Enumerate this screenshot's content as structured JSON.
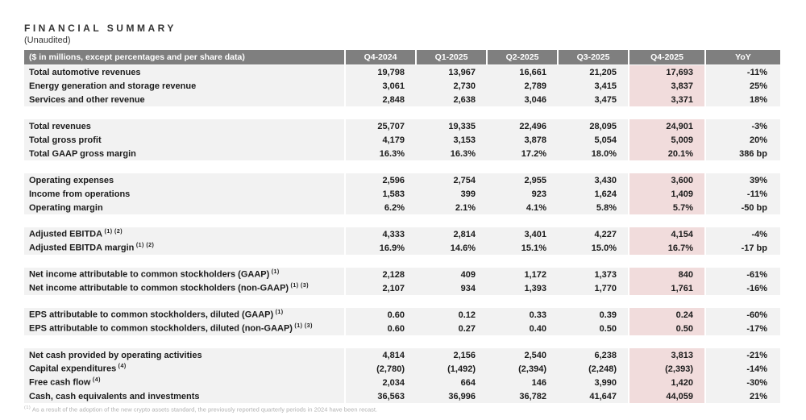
{
  "title": "FINANCIAL SUMMARY",
  "subtitle": "(Unaudited)",
  "colors": {
    "header_bg": "#7f7f7f",
    "header_text": "#ffffff",
    "row_bg": "#f2f2f2",
    "highlight_bg": "#f1dcdc"
  },
  "table": {
    "header": [
      "($ in millions, except percentages and per share data)",
      "Q4-2024",
      "Q1-2025",
      "Q2-2025",
      "Q3-2025",
      "Q4-2025",
      "YoY"
    ],
    "highlight_column": "Q4-2025",
    "sections": [
      {
        "rows": [
          {
            "label": "Total automotive revenues",
            "sup": "",
            "values": [
              "19,798",
              "13,967",
              "16,661",
              "21,205",
              "17,693",
              "-11%"
            ]
          },
          {
            "label": "Energy generation and storage revenue",
            "sup": "",
            "values": [
              "3,061",
              "2,730",
              "2,789",
              "3,415",
              "3,837",
              "25%"
            ]
          },
          {
            "label": "Services and other revenue",
            "sup": "",
            "values": [
              "2,848",
              "2,638",
              "3,046",
              "3,475",
              "3,371",
              "18%"
            ]
          }
        ]
      },
      {
        "rows": [
          {
            "label": "Total revenues",
            "sup": "",
            "values": [
              "25,707",
              "19,335",
              "22,496",
              "28,095",
              "24,901",
              "-3%"
            ]
          },
          {
            "label": "Total gross profit",
            "sup": "",
            "values": [
              "4,179",
              "3,153",
              "3,878",
              "5,054",
              "5,009",
              "20%"
            ]
          },
          {
            "label": "Total GAAP gross margin",
            "sup": "",
            "values": [
              "16.3%",
              "16.3%",
              "17.2%",
              "18.0%",
              "20.1%",
              "386 bp"
            ]
          }
        ]
      },
      {
        "rows": [
          {
            "label": "Operating expenses",
            "sup": "",
            "values": [
              "2,596",
              "2,754",
              "2,955",
              "3,430",
              "3,600",
              "39%"
            ]
          },
          {
            "label": "Income from operations",
            "sup": "",
            "values": [
              "1,583",
              "399",
              "923",
              "1,624",
              "1,409",
              "-11%"
            ]
          },
          {
            "label": "Operating margin",
            "sup": "",
            "values": [
              "6.2%",
              "2.1%",
              "4.1%",
              "5.8%",
              "5.7%",
              "-50 bp"
            ]
          }
        ]
      },
      {
        "rows": [
          {
            "label": "Adjusted EBITDA",
            "sup": "(1) (2)",
            "values": [
              "4,333",
              "2,814",
              "3,401",
              "4,227",
              "4,154",
              "-4%"
            ]
          },
          {
            "label": "Adjusted EBITDA margin",
            "sup": "(1) (2)",
            "values": [
              "16.9%",
              "14.6%",
              "15.1%",
              "15.0%",
              "16.7%",
              "-17 bp"
            ]
          }
        ]
      },
      {
        "rows": [
          {
            "label": "Net income attributable to common stockholders (GAAP)",
            "sup": "(1)",
            "values": [
              "2,128",
              "409",
              "1,172",
              "1,373",
              "840",
              "-61%"
            ]
          },
          {
            "label": "Net income attributable to common stockholders (non-GAAP)",
            "sup": "(1) (3)",
            "values": [
              "2,107",
              "934",
              "1,393",
              "1,770",
              "1,761",
              "-16%"
            ]
          }
        ]
      },
      {
        "rows": [
          {
            "label": "EPS attributable to common stockholders, diluted (GAAP)",
            "sup": "(1)",
            "values": [
              "0.60",
              "0.12",
              "0.33",
              "0.39",
              "0.24",
              "-60%"
            ]
          },
          {
            "label": "EPS attributable to common stockholders, diluted (non-GAAP)",
            "sup": "(1) (3)",
            "values": [
              "0.60",
              "0.27",
              "0.40",
              "0.50",
              "0.50",
              "-17%"
            ]
          }
        ]
      },
      {
        "rows": [
          {
            "label": "Net cash provided by operating activities",
            "sup": "",
            "values": [
              "4,814",
              "2,156",
              "2,540",
              "6,238",
              "3,813",
              "-21%"
            ]
          },
          {
            "label": "Capital expenditures",
            "sup": "(4)",
            "values": [
              "(2,780)",
              "(1,492)",
              "(2,394)",
              "(2,248)",
              "(2,393)",
              "-14%"
            ]
          },
          {
            "label": "Free cash flow",
            "sup": "(4)",
            "values": [
              "2,034",
              "664",
              "146",
              "3,990",
              "1,420",
              "-30%"
            ]
          },
          {
            "label": "Cash, cash equivalents and investments",
            "sup": "",
            "values": [
              "36,563",
              "36,996",
              "36,782",
              "41,647",
              "44,059",
              "21%"
            ]
          }
        ]
      }
    ]
  },
  "footnote": {
    "sup": "(1)",
    "text": "As a result of the adoption of the new crypto assets standard, the previously reported quarterly periods in 2024 have been recast."
  }
}
